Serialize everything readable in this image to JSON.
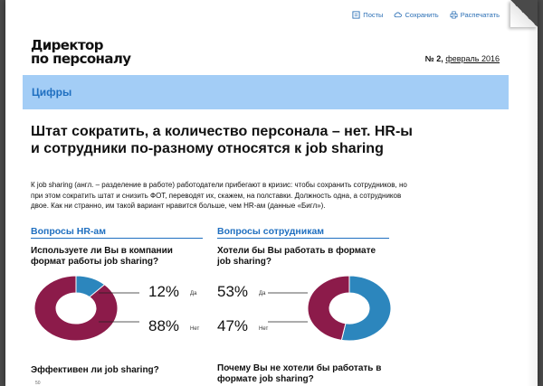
{
  "toolbar": {
    "post": "Посты",
    "save": "Сохранить",
    "print": "Распечатать"
  },
  "logo": {
    "line1": "Директор",
    "line2": "по персоналу"
  },
  "issue": {
    "number": "№ 2,",
    "date": "февраль 2016"
  },
  "section": "Цифры",
  "headline": "Штат сократить, а количество персонала – нет. HR-ы и сотрудники по-разному относятся к job sharing",
  "lede": "К job sharing (англ. – разделение в работе) работодатели прибегают в кризис: чтобы сохранить сотрудников, но при этом сократить штат и снизить ФОТ, переводят их, скажем, на полставки. Должность одна, а сотрудников двое. Как ни странно, им такой вариант нравится больше, чем HR-ам (данные «Бигл»).",
  "left": {
    "heading": "Вопросы HR-ам",
    "question1": "Используете ли Вы в компании формат работы job sharing?",
    "yes_pct": "12%",
    "yes_label": "Да",
    "no_pct": "88%",
    "no_label": "Нет",
    "question2": "Эффективен ли job sharing?",
    "tick": "50"
  },
  "right": {
    "heading": "Вопросы сотрудникам",
    "question1": "Хотели бы Вы работать в формате job sharing?",
    "yes_pct": "53%",
    "yes_label": "Да",
    "no_pct": "47%",
    "no_label": "Нет",
    "question2": "Почему Вы не хотели бы работать в формате job sharing?"
  },
  "chart_data": [
    {
      "type": "pie",
      "categories": [
        "Да",
        "Нет"
      ],
      "values": [
        12,
        88
      ],
      "colors": [
        "#2c86bd",
        "#8c1b4a"
      ]
    },
    {
      "type": "pie",
      "categories": [
        "Да",
        "Нет"
      ],
      "values": [
        53,
        47
      ],
      "colors": [
        "#2c86bd",
        "#8c1b4a"
      ]
    }
  ],
  "colors": {
    "accent": "#1f6fc0",
    "band": "#a3cdf6",
    "yes": "#2c86bd",
    "no": "#8c1b4a"
  }
}
